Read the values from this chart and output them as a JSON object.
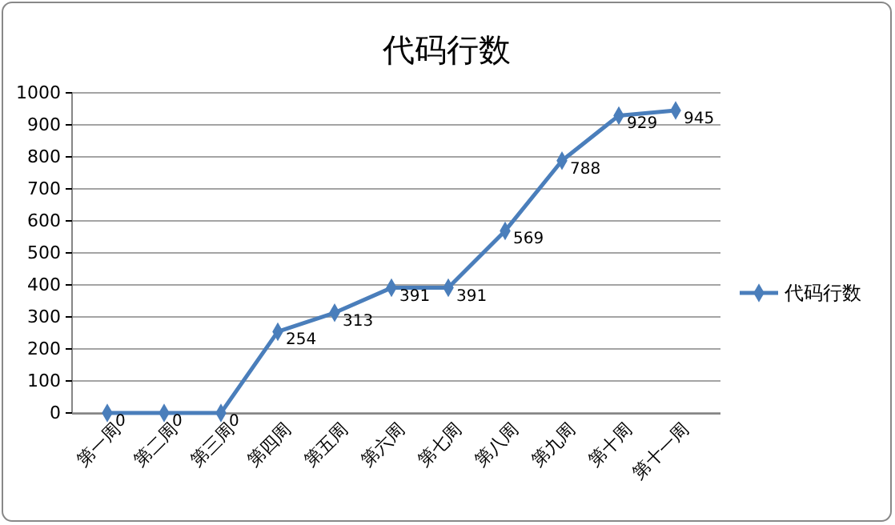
{
  "chart_data": {
    "type": "line",
    "title": "代码行数",
    "categories": [
      "第一周",
      "第二周",
      "第三周",
      "第四周",
      "第五周",
      "第六周",
      "第七周",
      "第八周",
      "第九周",
      "第十周",
      "第十一周"
    ],
    "series": [
      {
        "name": "代码行数",
        "color": "#4a7ebb",
        "values": [
          0,
          0,
          0,
          254,
          313,
          391,
          391,
          569,
          788,
          929,
          945
        ]
      }
    ],
    "ylim": [
      0,
      1000
    ],
    "yticks": [
      0,
      100,
      200,
      300,
      400,
      500,
      600,
      700,
      800,
      900,
      1000
    ],
    "grid": "y",
    "legend": "right",
    "marker": "diamond",
    "data_labels": true
  }
}
